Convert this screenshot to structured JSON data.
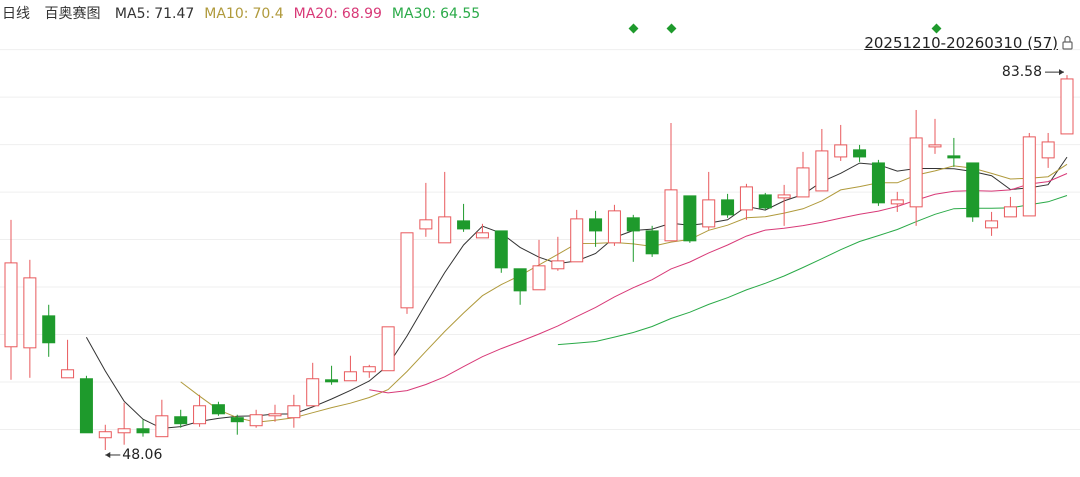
{
  "chart_data": {
    "type": "candlestick",
    "period": "日线",
    "title": "百奥赛图",
    "range": "20251210-20260310 (57)",
    "ylim": [
      45.5,
      90.7
    ],
    "yticks": [
      50,
      54.5,
      59,
      63.5,
      68,
      72.5,
      77,
      81.5,
      86
    ],
    "grid": true,
    "up_color": "#e8595c",
    "down_color": "#1e9a2c",
    "ma": [
      {
        "name": "MA5:",
        "value": 71.47,
        "color": "#333333"
      },
      {
        "name": "MA10:",
        "value": 70.4,
        "color": "#b09a3c"
      },
      {
        "name": "MA20:",
        "value": 68.99,
        "color": "#d83a78"
      },
      {
        "name": "MA30:",
        "value": 64.55,
        "color": "#2aaa48"
      }
    ],
    "ohlc": [
      [
        57.84,
        69.87,
        54.71,
        65.79
      ],
      [
        57.74,
        66.08,
        54.9,
        64.37
      ],
      [
        60.77,
        61.82,
        56.89,
        58.22
      ],
      [
        54.9,
        58.5,
        54.9,
        55.66
      ],
      [
        54.81,
        55.09,
        49.69,
        49.69
      ],
      [
        49.22,
        50.45,
        48.06,
        49.79
      ],
      [
        49.69,
        52.54,
        48.56,
        50.07
      ],
      [
        50.07,
        50.93,
        49.32,
        49.69
      ],
      [
        49.32,
        52.82,
        49.32,
        51.3
      ],
      [
        51.21,
        51.87,
        50.17,
        50.55
      ],
      [
        50.55,
        53.29,
        50.26,
        52.25
      ],
      [
        52.35,
        52.63,
        51.3,
        51.49
      ],
      [
        51.12,
        51.4,
        49.51,
        50.74
      ],
      [
        50.36,
        51.87,
        50.17,
        51.4
      ],
      [
        51.3,
        52.35,
        50.74,
        51.49
      ],
      [
        51.12,
        53.29,
        50.17,
        52.25
      ],
      [
        52.25,
        56.32,
        52.25,
        54.81
      ],
      [
        54.71,
        56.04,
        54.24,
        54.52
      ],
      [
        54.62,
        56.99,
        54.62,
        55.47
      ],
      [
        55.47,
        56.13,
        54.9,
        55.95
      ],
      [
        55.57,
        59.73,
        55.57,
        59.73
      ],
      [
        61.53,
        68.64,
        60.96,
        68.64
      ],
      [
        69.01,
        73.37,
        68.26,
        69.87
      ],
      [
        67.69,
        74.41,
        67.69,
        70.15
      ],
      [
        69.77,
        71.38,
        68.73,
        69.01
      ],
      [
        68.16,
        69.49,
        68.16,
        68.64
      ],
      [
        68.82,
        68.82,
        64.85,
        65.32
      ],
      [
        65.23,
        65.23,
        61.82,
        63.14
      ],
      [
        63.24,
        67.97,
        63.24,
        65.51
      ],
      [
        65.23,
        68.26,
        65.04,
        65.98
      ],
      [
        65.89,
        70.81,
        65.89,
        69.96
      ],
      [
        69.96,
        70.72,
        67.31,
        68.82
      ],
      [
        67.69,
        71.29,
        67.4,
        70.72
      ],
      [
        70.06,
        70.34,
        65.89,
        68.82
      ],
      [
        68.82,
        69.3,
        66.36,
        66.65
      ],
      [
        67.88,
        79.05,
        67.88,
        72.71
      ],
      [
        72.14,
        72.14,
        67.69,
        67.88
      ],
      [
        69.2,
        74.41,
        68.92,
        71.76
      ],
      [
        71.76,
        72.33,
        70.06,
        70.34
      ],
      [
        70.81,
        73.28,
        69.87,
        72.99
      ],
      [
        72.23,
        72.42,
        70.81,
        71.0
      ],
      [
        71.95,
        73.18,
        69.3,
        72.23
      ],
      [
        72.04,
        76.31,
        72.04,
        74.79
      ],
      [
        72.61,
        78.48,
        72.61,
        76.4
      ],
      [
        75.83,
        78.86,
        75.45,
        76.97
      ],
      [
        76.5,
        76.97,
        75.36,
        75.83
      ],
      [
        75.26,
        75.55,
        71.19,
        71.48
      ],
      [
        71.38,
        72.52,
        70.62,
        71.76
      ],
      [
        71.1,
        80.28,
        69.3,
        77.63
      ],
      [
        76.78,
        79.43,
        76.12,
        76.97
      ],
      [
        75.93,
        77.63,
        74.89,
        75.74
      ],
      [
        75.26,
        75.26,
        69.68,
        70.15
      ],
      [
        69.11,
        70.62,
        68.35,
        69.77
      ],
      [
        70.15,
        72.04,
        70.15,
        71.1
      ],
      [
        70.24,
        78.1,
        70.24,
        77.73
      ],
      [
        75.74,
        78.1,
        74.79,
        77.25
      ],
      [
        78.01,
        83.58,
        78.01,
        83.22
      ]
    ]
  }
}
